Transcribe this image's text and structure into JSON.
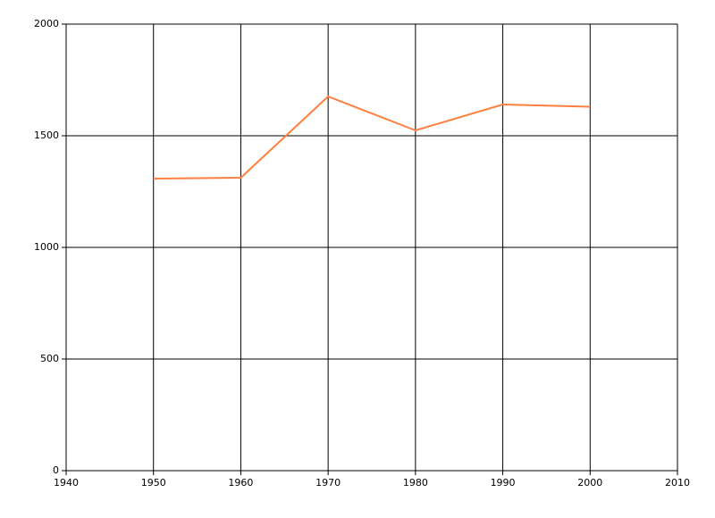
{
  "chart_data": {
    "type": "line",
    "x": [
      1950,
      1960,
      1970,
      1980,
      1990,
      2000
    ],
    "series": [
      {
        "color": "#ff7f3f",
        "values": [
          1308,
          1312,
          1676,
          1524,
          1640,
          1630
        ]
      }
    ],
    "xlim": [
      1940,
      2010
    ],
    "xticks": [
      1940,
      1950,
      1960,
      1970,
      1980,
      1990,
      2000,
      2010
    ],
    "ylim": [
      0,
      2000
    ],
    "yticks": [
      0,
      500,
      1000,
      1500,
      2000
    ],
    "grid": true
  }
}
